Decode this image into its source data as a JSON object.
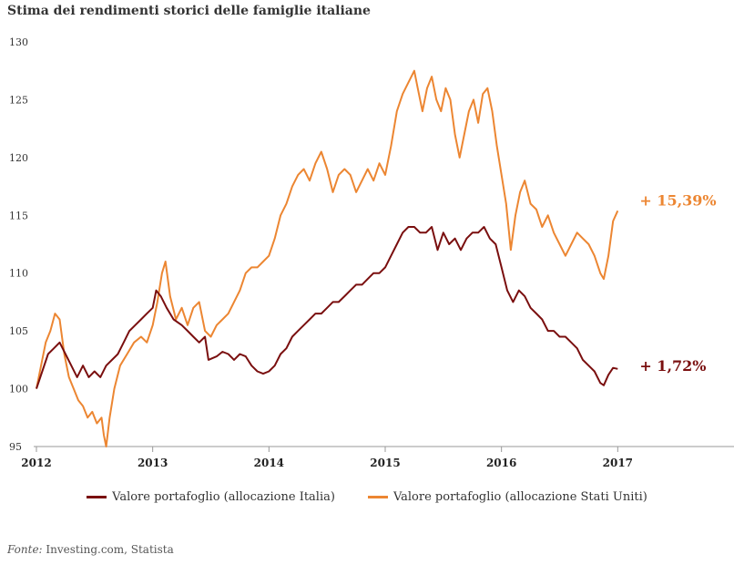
{
  "title": "Stima dei rendimenti storici delle famiglie italiane",
  "source": {
    "label": "Fonte:",
    "text": "Investing.com, Statista"
  },
  "chart_data": {
    "type": "line",
    "title": "Stima dei rendimenti storici delle famiglie italiane",
    "xlabel": "",
    "ylabel": "",
    "xlim": [
      2012,
      2018
    ],
    "ylim": [
      95,
      130
    ],
    "x_ticks": [
      "2012",
      "2013",
      "2014",
      "2015",
      "2016",
      "2017"
    ],
    "y_ticks": [
      "95",
      "100",
      "105",
      "110",
      "115",
      "120",
      "125",
      "130"
    ],
    "grid": false,
    "legend_position": "bottom",
    "x_unit": "year",
    "series": [
      {
        "name": "Valore portafoglio (allocazione Italia)",
        "color": "#7a0f0f",
        "end_label": "+ 1,72%",
        "points": [
          [
            2012.0,
            100.0
          ],
          [
            2012.05,
            101.5
          ],
          [
            2012.1,
            103.0
          ],
          [
            2012.15,
            103.5
          ],
          [
            2012.2,
            104.0
          ],
          [
            2012.25,
            103.0
          ],
          [
            2012.3,
            102.0
          ],
          [
            2012.35,
            101.0
          ],
          [
            2012.4,
            102.0
          ],
          [
            2012.45,
            101.0
          ],
          [
            2012.5,
            101.5
          ],
          [
            2012.55,
            101.0
          ],
          [
            2012.6,
            102.0
          ],
          [
            2012.65,
            102.5
          ],
          [
            2012.7,
            103.0
          ],
          [
            2012.75,
            104.0
          ],
          [
            2012.8,
            105.0
          ],
          [
            2012.85,
            105.5
          ],
          [
            2012.9,
            106.0
          ],
          [
            2012.95,
            106.5
          ],
          [
            2013.0,
            107.0
          ],
          [
            2013.03,
            108.5
          ],
          [
            2013.07,
            108.0
          ],
          [
            2013.12,
            107.0
          ],
          [
            2013.18,
            106.0
          ],
          [
            2013.25,
            105.5
          ],
          [
            2013.3,
            105.0
          ],
          [
            2013.35,
            104.5
          ],
          [
            2013.4,
            104.0
          ],
          [
            2013.45,
            104.5
          ],
          [
            2013.48,
            102.5
          ],
          [
            2013.55,
            102.8
          ],
          [
            2013.6,
            103.2
          ],
          [
            2013.65,
            103.0
          ],
          [
            2013.7,
            102.5
          ],
          [
            2013.75,
            103.0
          ],
          [
            2013.8,
            102.8
          ],
          [
            2013.85,
            102.0
          ],
          [
            2013.9,
            101.5
          ],
          [
            2013.95,
            101.3
          ],
          [
            2014.0,
            101.5
          ],
          [
            2014.05,
            102.0
          ],
          [
            2014.1,
            103.0
          ],
          [
            2014.15,
            103.5
          ],
          [
            2014.2,
            104.5
          ],
          [
            2014.25,
            105.0
          ],
          [
            2014.3,
            105.5
          ],
          [
            2014.35,
            106.0
          ],
          [
            2014.4,
            106.5
          ],
          [
            2014.45,
            106.5
          ],
          [
            2014.5,
            107.0
          ],
          [
            2014.55,
            107.5
          ],
          [
            2014.6,
            107.5
          ],
          [
            2014.65,
            108.0
          ],
          [
            2014.7,
            108.5
          ],
          [
            2014.75,
            109.0
          ],
          [
            2014.8,
            109.0
          ],
          [
            2014.85,
            109.5
          ],
          [
            2014.9,
            110.0
          ],
          [
            2014.95,
            110.0
          ],
          [
            2015.0,
            110.5
          ],
          [
            2015.05,
            111.5
          ],
          [
            2015.1,
            112.5
          ],
          [
            2015.15,
            113.5
          ],
          [
            2015.2,
            114.0
          ],
          [
            2015.25,
            114.0
          ],
          [
            2015.3,
            113.5
          ],
          [
            2015.35,
            113.5
          ],
          [
            2015.4,
            114.0
          ],
          [
            2015.45,
            112.0
          ],
          [
            2015.5,
            113.5
          ],
          [
            2015.55,
            112.5
          ],
          [
            2015.6,
            113.0
          ],
          [
            2015.65,
            112.0
          ],
          [
            2015.7,
            113.0
          ],
          [
            2015.75,
            113.5
          ],
          [
            2015.8,
            113.5
          ],
          [
            2015.85,
            114.0
          ],
          [
            2015.9,
            113.0
          ],
          [
            2015.95,
            112.5
          ],
          [
            2016.0,
            110.5
          ],
          [
            2016.05,
            108.5
          ],
          [
            2016.1,
            107.5
          ],
          [
            2016.15,
            108.5
          ],
          [
            2016.2,
            108.0
          ],
          [
            2016.25,
            107.0
          ],
          [
            2016.3,
            106.5
          ],
          [
            2016.35,
            106.0
          ],
          [
            2016.4,
            105.0
          ],
          [
            2016.45,
            105.0
          ],
          [
            2016.5,
            104.5
          ],
          [
            2016.55,
            104.5
          ],
          [
            2016.6,
            104.0
          ],
          [
            2016.65,
            103.5
          ],
          [
            2016.7,
            102.5
          ],
          [
            2016.75,
            102.0
          ],
          [
            2016.8,
            101.5
          ],
          [
            2016.85,
            100.5
          ],
          [
            2016.88,
            100.3
          ],
          [
            2016.92,
            101.2
          ],
          [
            2016.96,
            101.8
          ],
          [
            2017.0,
            101.72
          ]
        ]
      },
      {
        "name": "Valore portafoglio (allocazione Stati Uniti)",
        "color": "#ec8632",
        "end_label": "+ 15,39%",
        "points": [
          [
            2012.0,
            100.0
          ],
          [
            2012.04,
            102.0
          ],
          [
            2012.08,
            104.0
          ],
          [
            2012.12,
            105.0
          ],
          [
            2012.16,
            106.5
          ],
          [
            2012.2,
            106.0
          ],
          [
            2012.24,
            103.0
          ],
          [
            2012.28,
            101.0
          ],
          [
            2012.32,
            100.0
          ],
          [
            2012.36,
            99.0
          ],
          [
            2012.4,
            98.5
          ],
          [
            2012.44,
            97.5
          ],
          [
            2012.48,
            98.0
          ],
          [
            2012.52,
            97.0
          ],
          [
            2012.56,
            97.5
          ],
          [
            2012.58,
            96.0
          ],
          [
            2012.6,
            95.0
          ],
          [
            2012.63,
            97.5
          ],
          [
            2012.67,
            100.0
          ],
          [
            2012.72,
            102.0
          ],
          [
            2012.78,
            103.0
          ],
          [
            2012.84,
            104.0
          ],
          [
            2012.9,
            104.5
          ],
          [
            2012.95,
            104.0
          ],
          [
            2013.0,
            105.5
          ],
          [
            2013.04,
            107.5
          ],
          [
            2013.08,
            110.0
          ],
          [
            2013.11,
            111.0
          ],
          [
            2013.15,
            108.0
          ],
          [
            2013.2,
            106.0
          ],
          [
            2013.25,
            107.0
          ],
          [
            2013.3,
            105.5
          ],
          [
            2013.35,
            107.0
          ],
          [
            2013.4,
            107.5
          ],
          [
            2013.45,
            105.0
          ],
          [
            2013.5,
            104.5
          ],
          [
            2013.55,
            105.5
          ],
          [
            2013.6,
            106.0
          ],
          [
            2013.65,
            106.5
          ],
          [
            2013.7,
            107.5
          ],
          [
            2013.75,
            108.5
          ],
          [
            2013.8,
            110.0
          ],
          [
            2013.85,
            110.5
          ],
          [
            2013.9,
            110.5
          ],
          [
            2013.95,
            111.0
          ],
          [
            2014.0,
            111.5
          ],
          [
            2014.05,
            113.0
          ],
          [
            2014.1,
            115.0
          ],
          [
            2014.15,
            116.0
          ],
          [
            2014.2,
            117.5
          ],
          [
            2014.25,
            118.5
          ],
          [
            2014.3,
            119.0
          ],
          [
            2014.35,
            118.0
          ],
          [
            2014.4,
            119.5
          ],
          [
            2014.45,
            120.5
          ],
          [
            2014.5,
            119.0
          ],
          [
            2014.55,
            117.0
          ],
          [
            2014.6,
            118.5
          ],
          [
            2014.65,
            119.0
          ],
          [
            2014.7,
            118.5
          ],
          [
            2014.75,
            117.0
          ],
          [
            2014.8,
            118.0
          ],
          [
            2014.85,
            119.0
          ],
          [
            2014.9,
            118.0
          ],
          [
            2014.95,
            119.5
          ],
          [
            2015.0,
            118.5
          ],
          [
            2015.05,
            121.0
          ],
          [
            2015.1,
            124.0
          ],
          [
            2015.15,
            125.5
          ],
          [
            2015.2,
            126.5
          ],
          [
            2015.25,
            127.5
          ],
          [
            2015.28,
            126.0
          ],
          [
            2015.32,
            124.0
          ],
          [
            2015.36,
            126.0
          ],
          [
            2015.4,
            127.0
          ],
          [
            2015.44,
            125.0
          ],
          [
            2015.48,
            124.0
          ],
          [
            2015.52,
            126.0
          ],
          [
            2015.56,
            125.0
          ],
          [
            2015.6,
            122.0
          ],
          [
            2015.64,
            120.0
          ],
          [
            2015.68,
            122.0
          ],
          [
            2015.72,
            124.0
          ],
          [
            2015.76,
            125.0
          ],
          [
            2015.8,
            123.0
          ],
          [
            2015.84,
            125.5
          ],
          [
            2015.88,
            126.0
          ],
          [
            2015.92,
            124.0
          ],
          [
            2015.96,
            121.0
          ],
          [
            2016.0,
            118.5
          ],
          [
            2016.04,
            116.0
          ],
          [
            2016.08,
            112.0
          ],
          [
            2016.12,
            115.0
          ],
          [
            2016.16,
            117.0
          ],
          [
            2016.2,
            118.0
          ],
          [
            2016.25,
            116.0
          ],
          [
            2016.3,
            115.5
          ],
          [
            2016.35,
            114.0
          ],
          [
            2016.4,
            115.0
          ],
          [
            2016.45,
            113.5
          ],
          [
            2016.5,
            112.5
          ],
          [
            2016.55,
            111.5
          ],
          [
            2016.6,
            112.5
          ],
          [
            2016.65,
            113.5
          ],
          [
            2016.7,
            113.0
          ],
          [
            2016.75,
            112.5
          ],
          [
            2016.8,
            111.5
          ],
          [
            2016.85,
            110.0
          ],
          [
            2016.88,
            109.5
          ],
          [
            2016.92,
            111.5
          ],
          [
            2016.96,
            114.5
          ],
          [
            2017.0,
            115.39
          ]
        ]
      }
    ]
  }
}
